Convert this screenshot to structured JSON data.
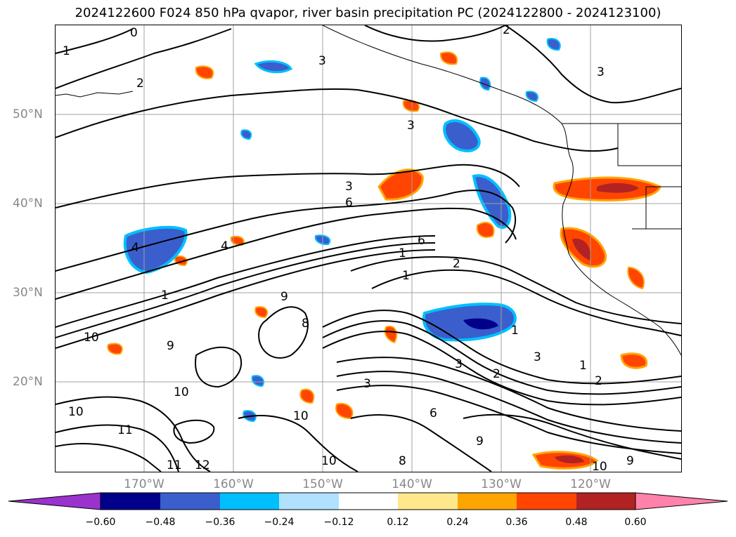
{
  "title": "2024122600 F024 850 hPa qvapor, river basin precipitation PC (2024122800 - 2024123100)",
  "lat_labels": [
    "50°N",
    "40°N",
    "30°N",
    "20°N"
  ],
  "lon_labels": [
    "170°W",
    "160°W",
    "150°W",
    "140°W",
    "130°W",
    "120°W"
  ],
  "colorbar": {
    "ticks": [
      "−0.60",
      "−0.48",
      "−0.36",
      "−0.24",
      "−0.12",
      "0.12",
      "0.24",
      "0.36",
      "0.48",
      "0.60"
    ],
    "colors": [
      "#9a32cd",
      "#00008b",
      "#3a5fcd",
      "#00bfff",
      "#b0e2ff",
      "#ffffff",
      "#ffe88c",
      "#ffa500",
      "#ff4500",
      "#b22222",
      "#ff82ab"
    ]
  },
  "contour_labels": [
    "0",
    "1",
    "2",
    "3",
    "4",
    "6",
    "8",
    "9",
    "10",
    "11",
    "12"
  ],
  "colors": {
    "contour": "#000000",
    "grid": "#a0a0a0",
    "coastline": "#000000",
    "axis_label": "#888888"
  }
}
